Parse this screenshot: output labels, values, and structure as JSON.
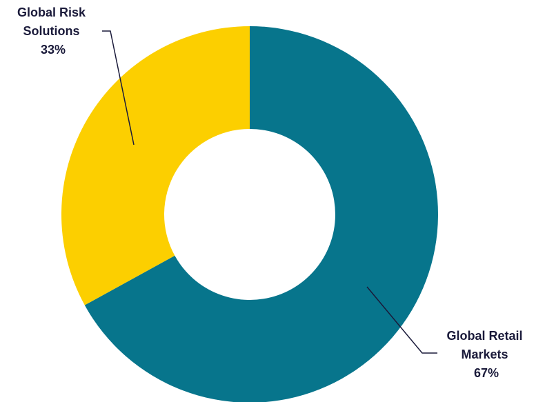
{
  "chart_data": {
    "type": "pie",
    "donut": true,
    "start_angle_deg": 0,
    "direction": "clockwise",
    "slices": [
      {
        "name": "Global Retail Markets",
        "value": 67,
        "label_lines": [
          "Global Retail",
          "Markets",
          "67%"
        ],
        "color": "#07758c"
      },
      {
        "name": "Global Risk Solutions",
        "value": 33,
        "label_lines": [
          "Global Risk",
          "Solutions",
          "33%"
        ],
        "color": "#fccf00"
      }
    ],
    "legend": "none",
    "data_labels": "outside with leader lines"
  }
}
